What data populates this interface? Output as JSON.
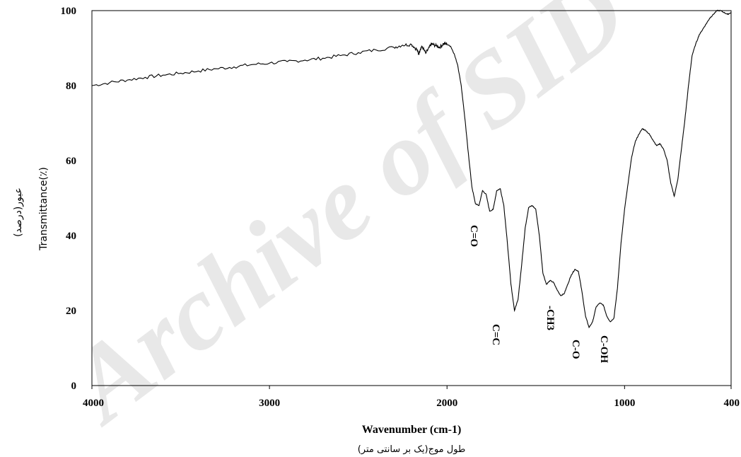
{
  "chart_data": {
    "type": "line",
    "xlabel": "Wavenumber (cm-1)",
    "xlabel_secondary": "طول موج(یک بر سانتی متر)",
    "ylabel_primary": "عبور(درصد)",
    "ylabel_secondary": "Transmittance(٪)",
    "x_reversed": true,
    "xlim": [
      4000,
      400
    ],
    "ylim": [
      0,
      100
    ],
    "x_ticks": [
      "4000",
      "3000",
      "2000",
      "1000",
      "400"
    ],
    "y_ticks": [
      "0",
      "20",
      "40",
      "60",
      "80",
      "100"
    ],
    "grid": false,
    "watermark": "Archive of SID",
    "series": [
      {
        "x": [
          4000,
          3900,
          3800,
          3700,
          3600,
          3500,
          3400,
          3300,
          3200,
          3100,
          3000,
          2900,
          2800,
          2700,
          2600,
          2500,
          2400,
          2300,
          2250,
          2200,
          2170,
          2160,
          2150,
          2140,
          2120,
          2100,
          2090,
          2080,
          2060,
          2040,
          2020,
          2000,
          1980,
          1960,
          1940,
          1920,
          1900,
          1880,
          1860,
          1840,
          1820,
          1800,
          1780,
          1760,
          1740,
          1720,
          1700,
          1680,
          1660,
          1640,
          1620,
          1600,
          1580,
          1560,
          1540,
          1520,
          1500,
          1480,
          1460,
          1440,
          1420,
          1400,
          1380,
          1360,
          1340,
          1320,
          1300,
          1280,
          1260,
          1240,
          1220,
          1200,
          1180,
          1160,
          1140,
          1120,
          1100,
          1080,
          1060,
          1040,
          1020,
          1000,
          980,
          960,
          940,
          920,
          900,
          880,
          860,
          840,
          820,
          800,
          780,
          760,
          740,
          720,
          700,
          680,
          660,
          640,
          620,
          600,
          580,
          560,
          540,
          520,
          500,
          480,
          460,
          440,
          420,
          400
        ],
        "y": [
          80,
          80.8,
          81.5,
          82.2,
          82.8,
          83.3,
          83.9,
          84.5,
          85.0,
          85.6,
          86.0,
          86.4,
          86.8,
          87.3,
          88.0,
          88.8,
          89.5,
          90.2,
          90.8,
          91.0,
          89.6,
          88.4,
          89.8,
          90.4,
          88.6,
          90.2,
          91.0,
          91.0,
          90.6,
          90.2,
          91.2,
          91.0,
          90.5,
          88.5,
          85.5,
          80.0,
          71.5,
          62.0,
          53.0,
          48.5,
          48.0,
          52.0,
          51.0,
          46.5,
          47.0,
          52.0,
          52.5,
          48.0,
          38.0,
          27.0,
          20.0,
          23.0,
          32.0,
          42.0,
          47.5,
          48.0,
          47.0,
          40.0,
          30.0,
          27.0,
          28.0,
          27.5,
          25.5,
          24.0,
          24.5,
          27.0,
          29.5,
          31.0,
          30.5,
          25.0,
          18.5,
          15.5,
          17.0,
          21.0,
          22.0,
          21.5,
          18.5,
          17.0,
          18.0,
          26.0,
          38.0,
          47.0,
          54.0,
          61.0,
          65.0,
          67.0,
          68.5,
          68.0,
          67.0,
          65.5,
          64.0,
          64.5,
          63.0,
          60.0,
          54.0,
          50.5,
          55.0,
          63.0,
          71.0,
          80.0,
          88.0,
          91.0,
          93.5,
          95.0,
          96.5,
          98.0,
          99.0,
          100.0,
          100.0,
          99.5,
          99.0,
          99.5
        ]
      }
    ],
    "annotations": [
      "C=O",
      "C=C",
      "-CH3",
      "C-O",
      "C-OH"
    ]
  }
}
